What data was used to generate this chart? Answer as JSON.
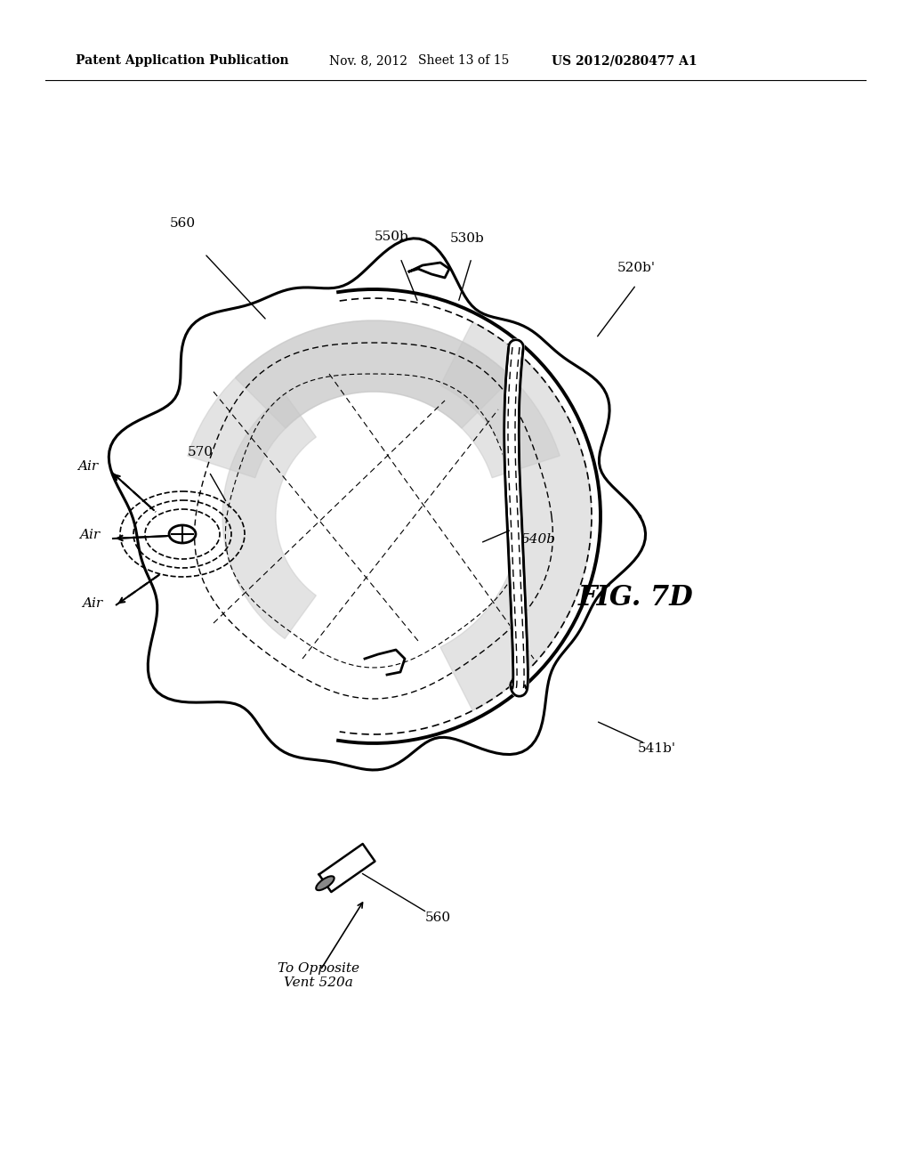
{
  "bg_color": "#ffffff",
  "header_text": "Patent Application Publication",
  "header_date": "Nov. 8, 2012",
  "header_sheet": "Sheet 13 of 15",
  "header_patent": "US 2012/0280477 A1",
  "fig_label": "FIG. 7D",
  "labels": {
    "560_top": "560",
    "530b": "530b",
    "550b": "550b",
    "520b_prime": "520b'",
    "570": "570",
    "540b": "540b",
    "541b_prime": "541b'",
    "560_bottom": "560",
    "air1": "Air",
    "air2": "Air",
    "air3": "Air",
    "to_opposite": "To Opposite\nVent 520a"
  }
}
